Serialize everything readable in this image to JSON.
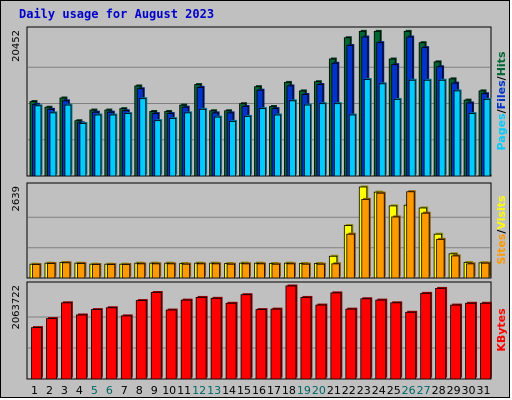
{
  "title": "Daily usage for August 2023",
  "colors": {
    "hits": "#006633",
    "files": "#0033cc",
    "pages": "#00ccff",
    "visits": "#ffff00",
    "sites": "#ff9900",
    "kbytes": "#ff0000",
    "weekend_label": "#006666",
    "weekday_label": "#000000",
    "title": "#0000cc"
  },
  "panel_max_labels": {
    "hits": "20452",
    "visits": "2639",
    "kbytes": "2063722"
  },
  "legends": {
    "top": [
      "Pages",
      "/",
      "Files",
      "/",
      "Hits"
    ],
    "middle": [
      "Sites",
      "/",
      "Visits"
    ],
    "bottom": [
      "KBytes"
    ]
  },
  "chart_data": {
    "type": "bar",
    "title": "Daily usage for August 2023",
    "categories": [
      "1",
      "2",
      "3",
      "4",
      "5",
      "6",
      "7",
      "8",
      "9",
      "10",
      "11",
      "12",
      "13",
      "14",
      "15",
      "16",
      "17",
      "18",
      "19",
      "20",
      "21",
      "22",
      "23",
      "24",
      "25",
      "26",
      "27",
      "28",
      "29",
      "30",
      "31"
    ],
    "weekend_days": [
      "5",
      "6",
      "12",
      "13",
      "19",
      "20",
      "26",
      "27"
    ],
    "panels": [
      {
        "name": "hits-files-pages",
        "max": 20452,
        "series": [
          {
            "name": "Hits",
            "color": "#006633",
            "values": [
              10500,
              9700,
              11000,
              7800,
              9300,
              9300,
              9500,
              12700,
              9100,
              9100,
              10000,
              12900,
              9200,
              9200,
              10200,
              12600,
              9800,
              13200,
              12000,
              13300,
              16500,
              19500,
              20400,
              20400,
              16500,
              20400,
              18800,
              16100,
              13700,
              10700,
              12000
            ]
          },
          {
            "name": "Files",
            "color": "#0033cc",
            "values": [
              10100,
              9400,
              10600,
              7500,
              9000,
              9000,
              9200,
              12300,
              8800,
              8800,
              9700,
              12500,
              8900,
              8900,
              9800,
              12100,
              9500,
              12700,
              11500,
              12900,
              15900,
              18400,
              19600,
              18800,
              15700,
              19600,
              18100,
              15400,
              13100,
              10300,
              11600
            ]
          },
          {
            "name": "Pages",
            "color": "#00ccff",
            "values": [
              9900,
              8900,
              10000,
              7400,
              8600,
              8600,
              8800,
              10900,
              7800,
              8100,
              8900,
              9400,
              8300,
              7700,
              8400,
              9500,
              8600,
              10600,
              10000,
              10200,
              10200,
              8600,
              13600,
              13000,
              10800,
              13500,
              13500,
              13500,
              12000,
              8800,
              10800
            ]
          }
        ]
      },
      {
        "name": "sites-visits",
        "max": 2639,
        "series": [
          {
            "name": "Visits",
            "color": "#ffff00",
            "values": [
              400,
              430,
              450,
              430,
              400,
              400,
              400,
              430,
              430,
              430,
              420,
              430,
              430,
              420,
              430,
              430,
              420,
              430,
              420,
              420,
              630,
              1520,
              2639,
              2490,
              2090,
              2110,
              2030,
              1270,
              700,
              450,
              440
            ]
          },
          {
            "name": "Sites",
            "color": "#ff9900",
            "values": [
              390,
              420,
              440,
              420,
              390,
              390,
              390,
              410,
              410,
              410,
              400,
              410,
              410,
              400,
              410,
              410,
              400,
              410,
              400,
              400,
              410,
              1270,
              2280,
              2460,
              1770,
              2500,
              1880,
              1120,
              640,
              410,
              430
            ]
          }
        ]
      },
      {
        "name": "kbytes",
        "max": 2063722,
        "series": [
          {
            "name": "KBytes",
            "color": "#ff0000",
            "values": [
              1140000,
              1340000,
              1690000,
              1420000,
              1540000,
              1580000,
              1400000,
              1740000,
              1920000,
              1530000,
              1750000,
              1810000,
              1790000,
              1680000,
              1870000,
              1540000,
              1550000,
              2063722,
              1810000,
              1640000,
              1910000,
              1550000,
              1780000,
              1750000,
              1690000,
              1480000,
              1900000,
              2010000,
              1640000,
              1680000,
              1680000
            ]
          }
        ]
      }
    ]
  }
}
